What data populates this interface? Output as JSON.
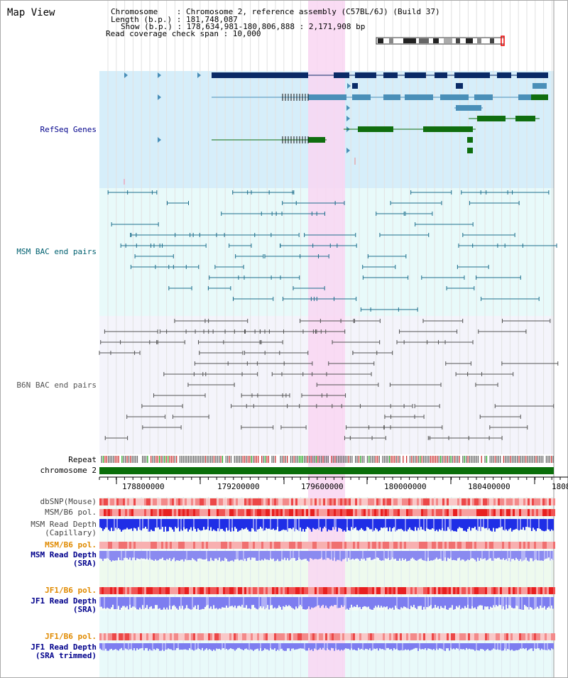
{
  "title": "Map View",
  "header": {
    "line1": "Chromosome    : Chromosome 2, reference assembly (C57BL/6J) (Build 37)",
    "line2": "Length (b.p.) : 181,748,087",
    "line3": "Show (b.p.) : 178,634,981-180,806,888 : 2,171,908 bp",
    "line4": "Read coverage check span : 10,000"
  },
  "tracks": {
    "refseq": "RefSeq Genes",
    "msm_bac": "MSM BAC end pairs",
    "b6n_bac": "B6N BAC end pairs",
    "repeat": "Repeat",
    "chromosome": "chromosome 2",
    "dbsnp": "dbSNP(Mouse)",
    "msm_b6_pol": "MSM/B6 pol.",
    "msm_depth_cap_1": "MSM Read Depth",
    "msm_depth_cap_2": "(Capillary)",
    "msm_b6_pol2": "MSM/B6 pol.",
    "msm_depth_sra_1": "MSM Read Depth",
    "msm_depth_sra_2": "(SRA)",
    "jf1_b6_pol": "JF1/B6 pol.",
    "jf1_depth_sra_1": "JF1 Read Depth",
    "jf1_depth_sra_2": "(SRA)",
    "jf1_b6_pol2": "JF1/B6 pol.",
    "jf1_depth_trim_1": "JF1 Read Depth",
    "jf1_depth_trim_2": "(SRA trimmed)"
  },
  "axis": {
    "ticks": [
      "178800000",
      "179200000",
      "179600000",
      "180000000",
      "180400000",
      "1808"
    ]
  },
  "colors": {
    "refseq_bg": "#d6eefa",
    "msm_bg": "#e8fafa",
    "b6n_bg": "#f4f4fb",
    "highlight": "#f9d6f2",
    "gene_dark": "#0a2a66",
    "gene_mid": "#4a8fb8",
    "gene_green": "#0f6e0f",
    "msm_line": "#1d6e8c",
    "b6n_line": "#555555",
    "chrom": "#0a6e0a",
    "label_blue": "#00008b",
    "label_teal": "#006070",
    "label_orange": "#e08a00"
  }
}
